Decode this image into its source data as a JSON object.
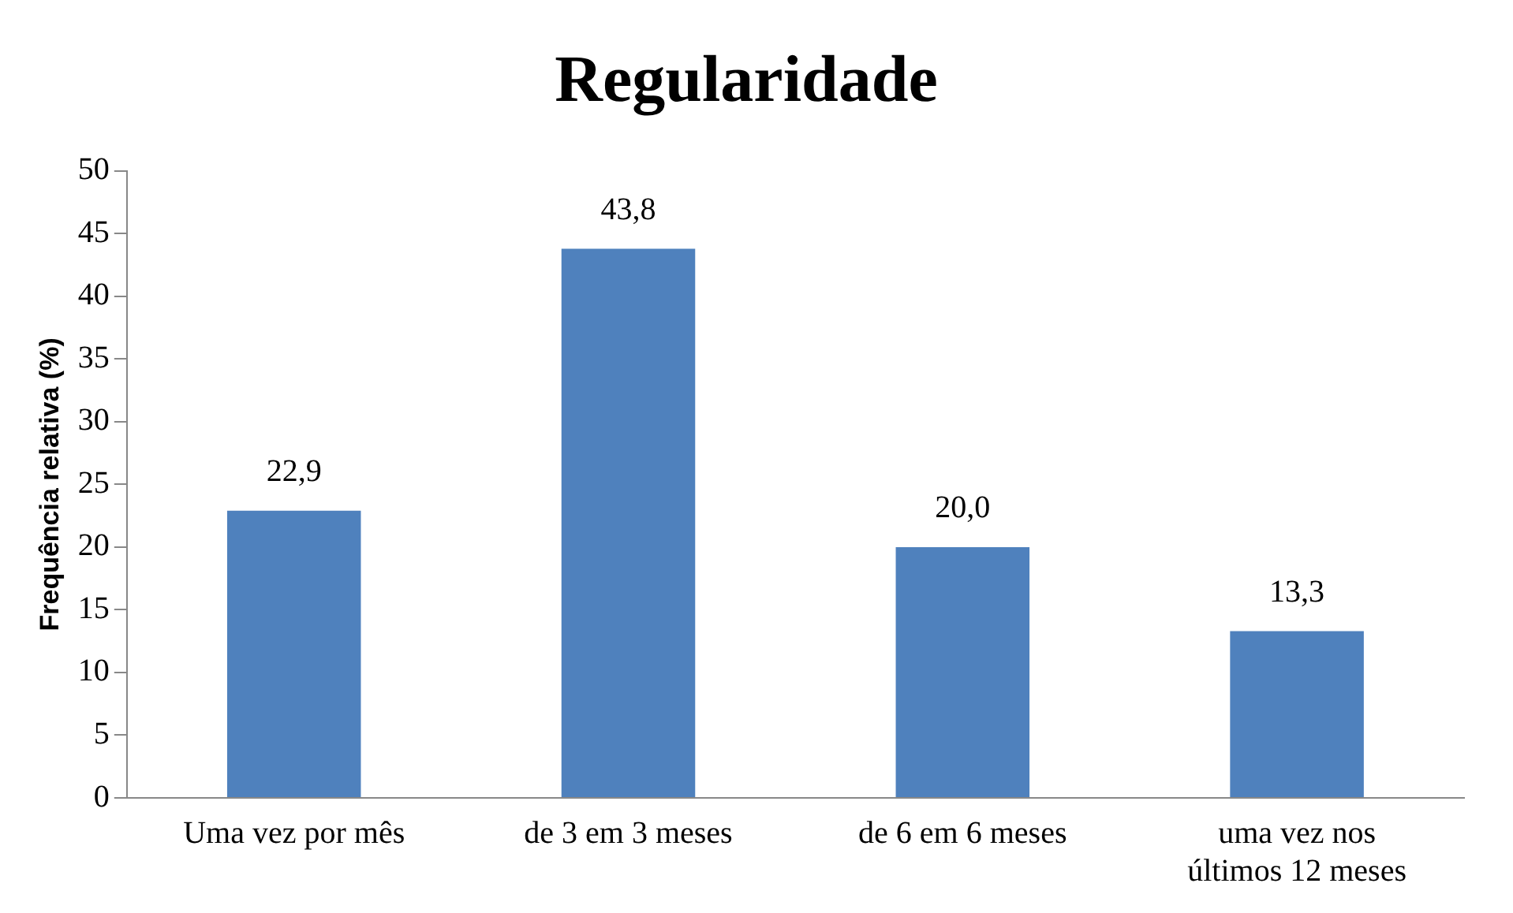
{
  "chart_data": {
    "type": "bar",
    "title": "Regularidade",
    "ylabel": "Frequência relativa (%)",
    "categories": [
      "Uma vez por mês",
      "de 3 em 3 meses",
      "de 6 em 6 meses",
      "uma vez nos últimos 12 meses"
    ],
    "values": [
      22.9,
      43.8,
      20.0,
      13.3
    ],
    "value_labels": [
      "22,9",
      "43,8",
      "20,0",
      "13,3"
    ],
    "color": "#4f81bd",
    "ylim": [
      0,
      50
    ],
    "yticks": [
      0,
      5,
      10,
      15,
      20,
      25,
      30,
      35,
      40,
      45,
      50
    ],
    "grid": false,
    "legend": false
  }
}
